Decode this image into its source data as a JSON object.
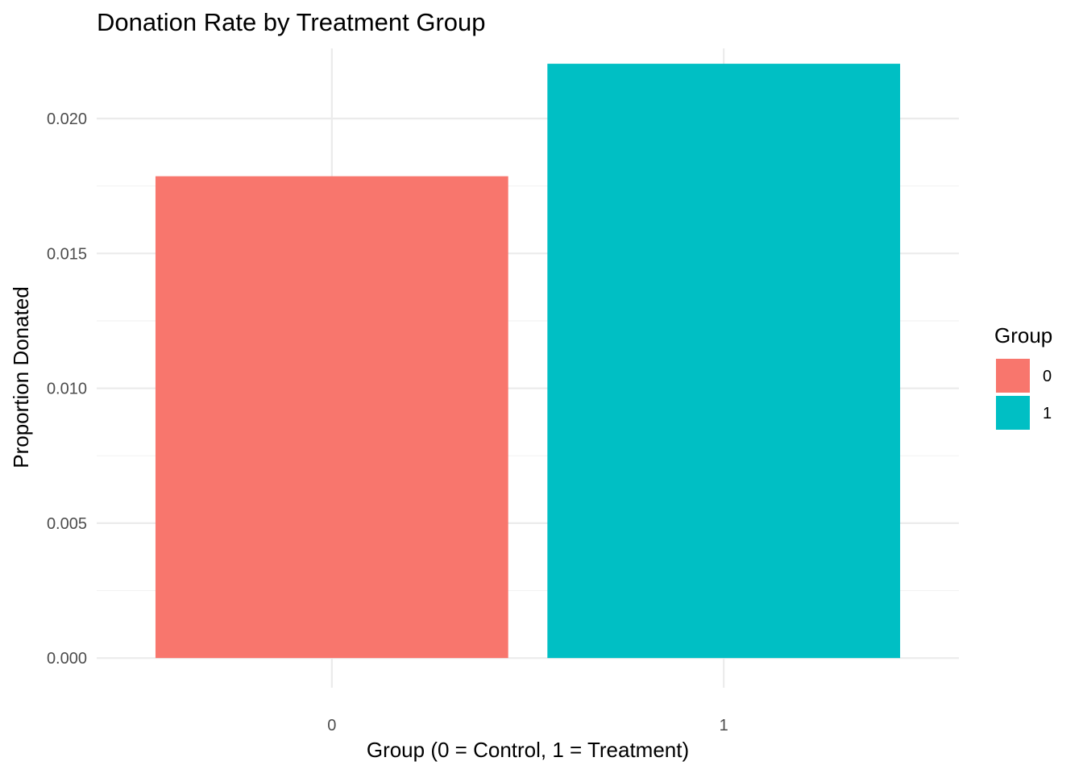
{
  "chart_data": {
    "type": "bar",
    "title": "Donation Rate by Treatment Group",
    "xlabel": "Group (0 = Control, 1 = Treatment)",
    "ylabel": "Proportion Donated",
    "categories": [
      "0",
      "1"
    ],
    "values": [
      0.01786,
      0.02203
    ],
    "colors": [
      "#F8766D",
      "#00BFC4"
    ],
    "ylim": [
      -0.0011,
      0.0226
    ],
    "yticks": [
      0.0,
      0.005,
      0.01,
      0.015,
      0.02
    ],
    "ytick_labels": [
      "0.000",
      "0.005",
      "0.010",
      "0.015",
      "0.020"
    ],
    "grid": true,
    "legend": {
      "title": "Group",
      "position": "right",
      "items": [
        {
          "label": "0",
          "color": "#F8766D"
        },
        {
          "label": "1",
          "color": "#00BFC4"
        }
      ]
    }
  }
}
